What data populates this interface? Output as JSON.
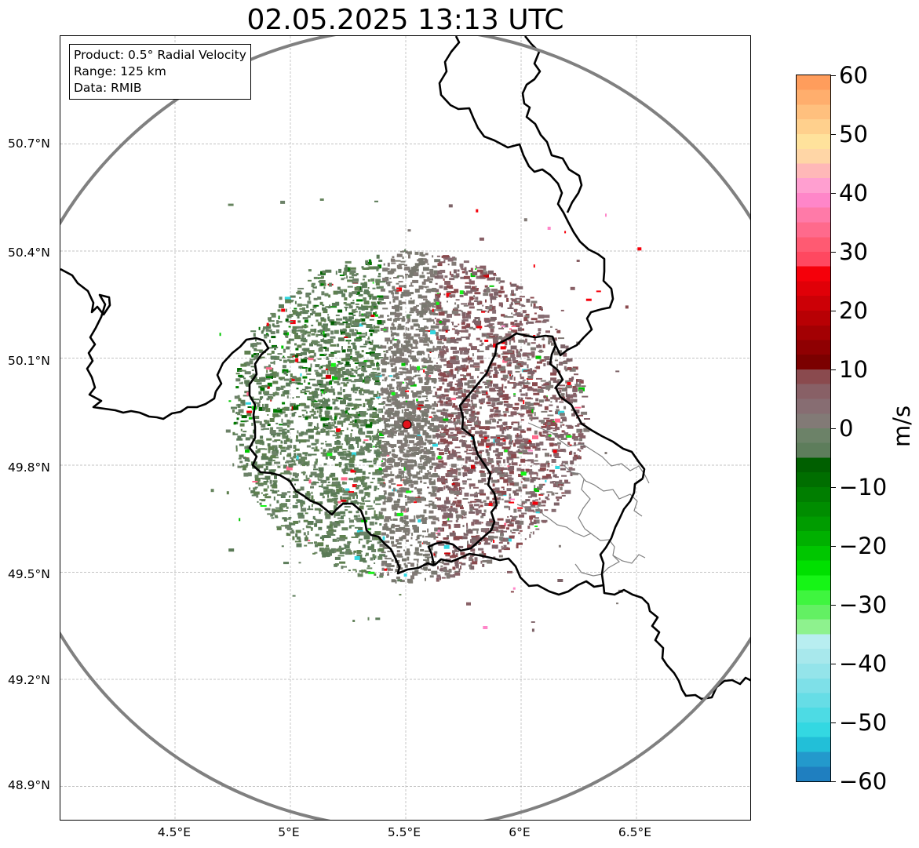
{
  "title": "02.05.2025 13:13 UTC",
  "info": {
    "product": "Product: 0.5° Radial Velocity",
    "range": "Range: 125 km",
    "data": "Data: RMIB"
  },
  "axes": {
    "lat_ticks": [
      "50.7°N",
      "50.4°N",
      "50.1°N",
      "49.8°N",
      "49.5°N",
      "49.2°N",
      "48.9°N"
    ],
    "lon_ticks": [
      "4.5°E",
      "5°E",
      "5.5°E",
      "6°E",
      "6.5°E"
    ]
  },
  "map": {
    "radar_site": {
      "lon": 5.505,
      "lat": 49.914
    },
    "range_ring_km": 125,
    "extent": {
      "lon_min": 4.0,
      "lon_max": 7.0,
      "lat_min": 48.8,
      "lat_max": 51.0
    },
    "colors": {
      "range_ring": "#808080",
      "border": "#000000",
      "gridline": "#b0b0b0",
      "admin": "#808080",
      "radar_marker": "#e3121b"
    }
  },
  "colorbar": {
    "label": "m/s",
    "min": -60,
    "max": 60,
    "tick_labels": [
      "60",
      "50",
      "40",
      "30",
      "20",
      "10",
      "0",
      "−10",
      "−20",
      "−30",
      "−40",
      "−50",
      "−60"
    ],
    "colors_top_to_bottom": [
      "#ff9d5c",
      "#ffae6d",
      "#ffc07e",
      "#ffd08d",
      "#ffe29c",
      "#ffd6a6",
      "#ffb8b8",
      "#ff9fd0",
      "#ff86c9",
      "#ff7aa8",
      "#ff6a8c",
      "#ff5a72",
      "#ff4860",
      "#f5000a",
      "#e00008",
      "#cc0006",
      "#b80004",
      "#a30003",
      "#8f0002",
      "#7b0000",
      "#8a4a4e",
      "#886066",
      "#876d72",
      "#827a76",
      "#6c8268",
      "#5d7d5b",
      "#005f00",
      "#006e00",
      "#007e00",
      "#008d00",
      "#009c00",
      "#00b000",
      "#00c600",
      "#00e000",
      "#16f516",
      "#3ff53f",
      "#63f063",
      "#8ef28e",
      "#b8eef0",
      "#a8e8ec",
      "#94e4ea",
      "#7ee0e8",
      "#66dde6",
      "#4ddbe4",
      "#33d8e2",
      "#22bfd8",
      "#2399cc",
      "#1f7fc0"
    ]
  }
}
